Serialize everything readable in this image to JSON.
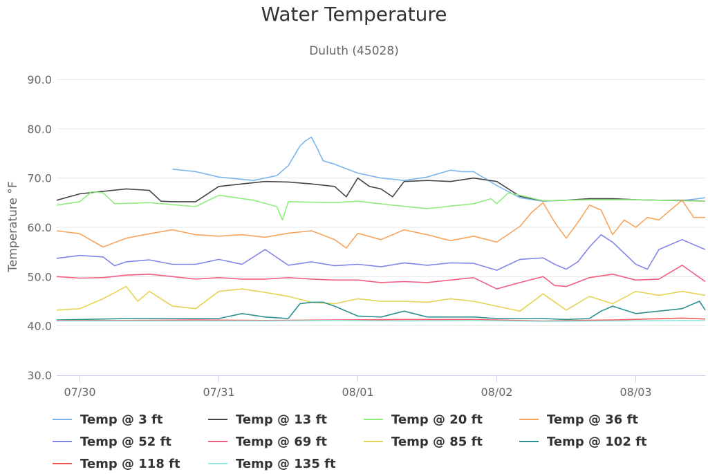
{
  "chart_data": {
    "type": "line",
    "title": "Water Temperature",
    "subtitle": "Duluth (45028)",
    "ylabel": "Temperature °F",
    "xlabel": "",
    "ylim": [
      30,
      90
    ],
    "yticks": [
      "30.0",
      "40.0",
      "50.0",
      "60.0",
      "70.0",
      "80.0",
      "90.0"
    ],
    "x_range": [
      "07/29 20:00",
      "08/03 12:00"
    ],
    "x_ticks": [
      "07/30",
      "07/31",
      "08/01",
      "08/02",
      "08/03"
    ],
    "grid": true,
    "legend_position": "bottom",
    "series": [
      {
        "name": "Temp @ 3 ft",
        "color": "#7cb5ec",
        "x": [
          "07/30 16:00",
          "07/30 20:00",
          "07/31 00:00",
          "07/31 06:00",
          "07/31 10:00",
          "07/31 12:00",
          "07/31 14:00",
          "07/31 15:00",
          "07/31 16:00",
          "07/31 17:00",
          "07/31 18:00",
          "07/31 20:00",
          "08/01 00:00",
          "08/01 04:00",
          "08/01 08:00",
          "08/01 12:00",
          "08/01 16:00",
          "08/01 18:00",
          "08/01 20:00",
          "08/02 00:00",
          "08/02 04:00",
          "08/02 08:00",
          "08/02 12:00",
          "08/02 16:00",
          "08/02 20:00",
          "08/03 00:00",
          "08/03 04:00",
          "08/03 08:00",
          "08/03 12:00"
        ],
        "y": [
          71.8,
          71.3,
          70.2,
          69.5,
          70.5,
          72.5,
          76.5,
          77.6,
          78.3,
          76.0,
          73.5,
          72.8,
          71.0,
          70.0,
          69.5,
          70.2,
          71.6,
          71.3,
          71.3,
          68.5,
          66.0,
          65.3,
          65.5,
          65.8,
          65.8,
          65.6,
          65.5,
          65.4,
          66.0
        ]
      },
      {
        "name": "Temp @ 13 ft",
        "color": "#434348",
        "x": [
          "07/29 20:00",
          "07/30 00:00",
          "07/30 04:00",
          "07/30 08:00",
          "07/30 12:00",
          "07/30 14:00",
          "07/30 16:00",
          "07/30 20:00",
          "07/31 00:00",
          "07/31 04:00",
          "07/31 08:00",
          "07/31 12:00",
          "07/31 16:00",
          "07/31 20:00",
          "07/31 22:00",
          "08/01 00:00",
          "08/01 02:00",
          "08/01 04:00",
          "08/01 06:00",
          "08/01 08:00",
          "08/01 12:00",
          "08/01 16:00",
          "08/01 20:00",
          "08/02 00:00",
          "08/02 04:00",
          "08/02 08:00",
          "08/02 12:00",
          "08/02 16:00",
          "08/02 20:00",
          "08/03 00:00",
          "08/03 04:00",
          "08/03 08:00",
          "08/03 12:00"
        ],
        "y": [
          65.5,
          66.8,
          67.3,
          67.8,
          67.5,
          65.3,
          65.2,
          65.2,
          68.3,
          68.8,
          69.3,
          69.2,
          68.8,
          68.3,
          66.2,
          70.0,
          68.3,
          67.8,
          66.2,
          69.3,
          69.5,
          69.3,
          70.0,
          69.3,
          66.3,
          65.4,
          65.5,
          65.8,
          65.8,
          65.6,
          65.5,
          65.5,
          65.3
        ]
      },
      {
        "name": "Temp @ 20 ft",
        "color": "#90ed7d",
        "x": [
          "07/29 20:00",
          "07/30 00:00",
          "07/30 02:00",
          "07/30 04:00",
          "07/30 06:00",
          "07/30 12:00",
          "07/30 20:00",
          "07/31 00:00",
          "07/31 06:00",
          "07/31 10:00",
          "07/31 11:00",
          "07/31 12:00",
          "07/31 20:00",
          "08/01 00:00",
          "08/01 06:00",
          "08/01 12:00",
          "08/01 20:00",
          "08/01 23:00",
          "08/02 00:00",
          "08/02 02:00",
          "08/02 04:00",
          "08/02 08:00",
          "08/02 12:00",
          "08/02 16:00",
          "08/02 20:00",
          "08/03 00:00",
          "08/03 04:00",
          "08/03 08:00",
          "08/03 12:00"
        ],
        "y": [
          64.5,
          65.2,
          67.2,
          67.0,
          64.8,
          65.0,
          64.2,
          66.5,
          65.5,
          64.2,
          61.5,
          65.2,
          65.0,
          65.3,
          64.5,
          63.8,
          64.8,
          65.8,
          64.8,
          67.0,
          66.5,
          65.4,
          65.5,
          65.6,
          65.6,
          65.6,
          65.5,
          65.4,
          65.3
        ]
      },
      {
        "name": "Temp @ 36 ft",
        "color": "#f7a35c",
        "x": [
          "07/29 20:00",
          "07/30 00:00",
          "07/30 04:00",
          "07/30 08:00",
          "07/30 12:00",
          "07/30 16:00",
          "07/30 20:00",
          "07/31 00:00",
          "07/31 04:00",
          "07/31 08:00",
          "07/31 12:00",
          "07/31 16:00",
          "07/31 20:00",
          "07/31 22:00",
          "08/01 00:00",
          "08/01 04:00",
          "08/01 08:00",
          "08/01 12:00",
          "08/01 16:00",
          "08/01 20:00",
          "08/02 00:00",
          "08/02 04:00",
          "08/02 06:00",
          "08/02 08:00",
          "08/02 10:00",
          "08/02 12:00",
          "08/02 14:00",
          "08/02 16:00",
          "08/02 18:00",
          "08/02 20:00",
          "08/02 22:00",
          "08/03 00:00",
          "08/03 02:00",
          "08/03 04:00",
          "08/03 06:00",
          "08/03 08:00",
          "08/03 10:00",
          "08/03 12:00"
        ],
        "y": [
          59.3,
          58.7,
          56.0,
          57.8,
          58.7,
          59.5,
          58.5,
          58.2,
          58.5,
          58.0,
          58.8,
          59.3,
          57.5,
          55.8,
          58.8,
          57.5,
          59.5,
          58.5,
          57.3,
          58.2,
          57.0,
          60.2,
          63.0,
          65.0,
          61.0,
          57.8,
          61.0,
          64.5,
          63.5,
          58.5,
          61.5,
          60.0,
          62.0,
          61.5,
          63.5,
          65.5,
          62.0,
          62.0
        ]
      },
      {
        "name": "Temp @ 52 ft",
        "color": "#8085e9",
        "x": [
          "07/29 20:00",
          "07/30 00:00",
          "07/30 04:00",
          "07/30 06:00",
          "07/30 08:00",
          "07/30 12:00",
          "07/30 16:00",
          "07/30 20:00",
          "07/31 00:00",
          "07/31 04:00",
          "07/31 08:00",
          "07/31 12:00",
          "07/31 16:00",
          "07/31 20:00",
          "08/01 00:00",
          "08/01 04:00",
          "08/01 08:00",
          "08/01 12:00",
          "08/01 16:00",
          "08/01 20:00",
          "08/02 00:00",
          "08/02 04:00",
          "08/02 08:00",
          "08/02 10:00",
          "08/02 12:00",
          "08/02 14:00",
          "08/02 16:00",
          "08/02 18:00",
          "08/02 20:00",
          "08/03 00:00",
          "08/03 02:00",
          "08/03 04:00",
          "08/03 08:00",
          "08/03 12:00"
        ],
        "y": [
          53.7,
          54.3,
          54.0,
          52.2,
          53.0,
          53.4,
          52.5,
          52.5,
          53.5,
          52.5,
          55.5,
          52.3,
          53.0,
          52.2,
          52.5,
          52.0,
          52.8,
          52.3,
          52.8,
          52.7,
          51.3,
          53.5,
          53.8,
          52.5,
          51.5,
          53.0,
          56.0,
          58.5,
          57.0,
          52.5,
          51.5,
          55.5,
          57.5,
          55.5
        ]
      },
      {
        "name": "Temp @ 69 ft",
        "color": "#f15c80",
        "x": [
          "07/29 20:00",
          "07/30 00:00",
          "07/30 04:00",
          "07/30 08:00",
          "07/30 12:00",
          "07/30 16:00",
          "07/30 20:00",
          "07/31 00:00",
          "07/31 04:00",
          "07/31 08:00",
          "07/31 12:00",
          "07/31 16:00",
          "07/31 20:00",
          "08/01 00:00",
          "08/01 04:00",
          "08/01 08:00",
          "08/01 12:00",
          "08/01 16:00",
          "08/01 20:00",
          "08/02 00:00",
          "08/02 04:00",
          "08/02 08:00",
          "08/02 10:00",
          "08/02 12:00",
          "08/02 16:00",
          "08/02 20:00",
          "08/03 00:00",
          "08/03 04:00",
          "08/03 08:00",
          "08/03 12:00"
        ],
        "y": [
          50.0,
          49.7,
          49.8,
          50.3,
          50.5,
          50.0,
          49.5,
          49.8,
          49.5,
          49.5,
          49.8,
          49.5,
          49.3,
          49.3,
          48.8,
          49.0,
          48.8,
          49.3,
          49.8,
          47.5,
          48.8,
          50.0,
          48.2,
          48.0,
          49.8,
          50.5,
          49.3,
          49.5,
          52.3,
          49.0
        ]
      },
      {
        "name": "Temp @ 85 ft",
        "color": "#e4d354",
        "x": [
          "07/29 20:00",
          "07/30 00:00",
          "07/30 04:00",
          "07/30 08:00",
          "07/30 10:00",
          "07/30 12:00",
          "07/30 16:00",
          "07/30 20:00",
          "07/31 00:00",
          "07/31 04:00",
          "07/31 08:00",
          "07/31 12:00",
          "07/31 16:00",
          "07/31 20:00",
          "08/01 00:00",
          "08/01 04:00",
          "08/01 08:00",
          "08/01 12:00",
          "08/01 16:00",
          "08/01 20:00",
          "08/02 00:00",
          "08/02 04:00",
          "08/02 08:00",
          "08/02 12:00",
          "08/02 16:00",
          "08/02 20:00",
          "08/03 00:00",
          "08/03 04:00",
          "08/03 08:00",
          "08/03 12:00"
        ],
        "y": [
          43.2,
          43.5,
          45.5,
          48.0,
          45.0,
          47.0,
          44.0,
          43.5,
          47.0,
          47.5,
          46.8,
          46.0,
          44.8,
          44.5,
          45.5,
          45.0,
          45.0,
          44.8,
          45.5,
          45.0,
          44.0,
          43.0,
          46.5,
          43.2,
          46.0,
          44.5,
          47.0,
          46.2,
          47.0,
          46.2
        ]
      },
      {
        "name": "Temp @ 102 ft",
        "color": "#2b908f",
        "x": [
          "07/29 20:00",
          "07/30 00:00",
          "07/30 08:00",
          "07/30 16:00",
          "07/31 00:00",
          "07/31 04:00",
          "07/31 08:00",
          "07/31 12:00",
          "07/31 14:00",
          "07/31 16:00",
          "07/31 18:00",
          "07/31 20:00",
          "08/01 00:00",
          "08/01 04:00",
          "08/01 08:00",
          "08/01 12:00",
          "08/01 16:00",
          "08/01 20:00",
          "08/02 00:00",
          "08/02 04:00",
          "08/02 08:00",
          "08/02 12:00",
          "08/02 16:00",
          "08/02 18:00",
          "08/02 20:00",
          "08/03 00:00",
          "08/03 04:00",
          "08/03 08:00",
          "08/03 11:00",
          "08/03 12:00"
        ],
        "y": [
          41.2,
          41.3,
          41.5,
          41.5,
          41.5,
          42.5,
          41.8,
          41.5,
          44.5,
          44.8,
          44.8,
          44.0,
          42.0,
          41.8,
          43.0,
          41.8,
          41.8,
          41.8,
          41.5,
          41.5,
          41.5,
          41.3,
          41.5,
          43.0,
          44.0,
          42.5,
          43.0,
          43.5,
          45.0,
          43.2
        ]
      },
      {
        "name": "Temp @ 118 ft",
        "color": "#f45b5b",
        "x": [
          "07/29 20:00",
          "07/30 08:00",
          "07/30 20:00",
          "07/31 08:00",
          "07/31 20:00",
          "08/01 08:00",
          "08/01 20:00",
          "08/02 08:00",
          "08/02 20:00",
          "08/03 08:00",
          "08/03 12:00"
        ],
        "y": [
          41.1,
          41.1,
          41.2,
          41.1,
          41.2,
          41.3,
          41.3,
          41.0,
          41.2,
          41.6,
          41.4
        ]
      },
      {
        "name": "Temp @ 135 ft",
        "color": "#91e8e1",
        "x": [
          "07/29 20:00",
          "07/30 08:00",
          "07/30 20:00",
          "07/31 08:00",
          "07/31 20:00",
          "08/01 08:00",
          "08/01 20:00",
          "08/02 08:00",
          "08/02 20:00",
          "08/03 08:00",
          "08/03 12:00"
        ],
        "y": [
          41.0,
          41.0,
          41.0,
          41.0,
          41.1,
          41.0,
          41.1,
          40.9,
          41.0,
          41.1,
          41.1
        ]
      }
    ]
  }
}
